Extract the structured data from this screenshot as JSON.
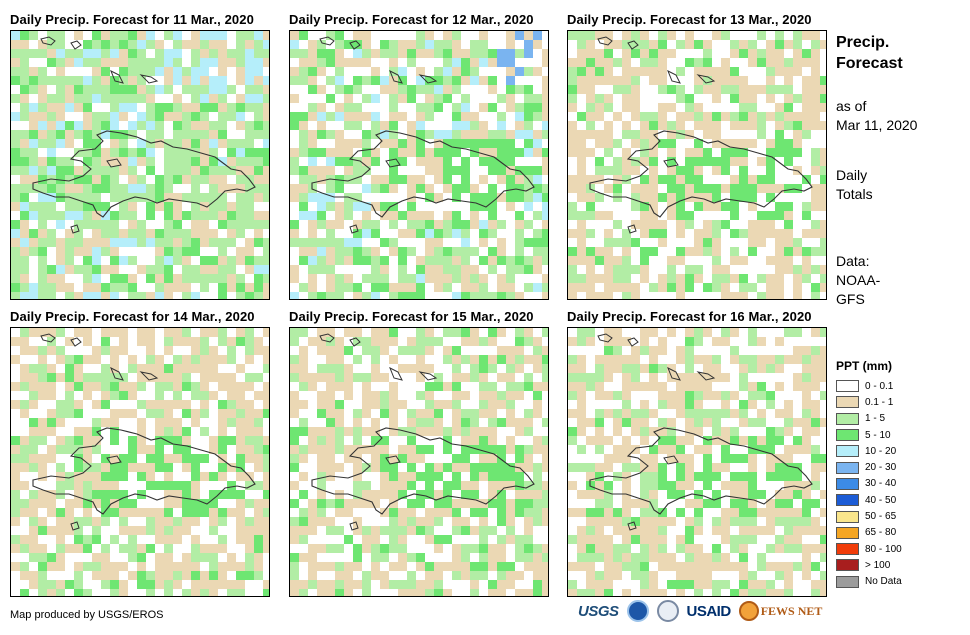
{
  "panels": [
    {
      "title": "Daily Precip. Forecast for 11 Mar., 2020",
      "seed": 11,
      "pattern": "wet"
    },
    {
      "title": "Daily Precip. Forecast for 12 Mar., 2020",
      "seed": 12,
      "pattern": "mixed"
    },
    {
      "title": "Daily Precip. Forecast for 13 Mar., 2020",
      "seed": 13,
      "pattern": "dry"
    },
    {
      "title": "Daily Precip. Forecast for 14 Mar., 2020",
      "seed": 14,
      "pattern": "dry"
    },
    {
      "title": "Daily Precip. Forecast for 15 Mar., 2020",
      "seed": 15,
      "pattern": "dry"
    },
    {
      "title": "Daily Precip. Forecast for 16 Mar., 2020",
      "seed": 16,
      "pattern": "dry"
    }
  ],
  "side_info": {
    "title_line1": "Precip.",
    "title_line2": "Forecast",
    "asof_line1": "as of",
    "asof_line2": "Mar 11, 2020",
    "totals_line1": "Daily",
    "totals_line2": "Totals",
    "data_line1": "Data:",
    "data_line2": "NOAA-",
    "data_line3": "GFS"
  },
  "legend": {
    "title": "PPT (mm)",
    "items": [
      {
        "label": "0 - 0.1",
        "color": "#ffffff"
      },
      {
        "label": "0.1 - 1",
        "color": "#ebd8b4"
      },
      {
        "label": "1 - 5",
        "color": "#b2eda5"
      },
      {
        "label": "5 - 10",
        "color": "#6ee672"
      },
      {
        "label": "10 - 20",
        "color": "#b5eefa"
      },
      {
        "label": "20 - 30",
        "color": "#7ab4f0"
      },
      {
        "label": "30 - 40",
        "color": "#3c8be6"
      },
      {
        "label": "40 - 50",
        "color": "#1c5cd6"
      },
      {
        "label": "50 - 65",
        "color": "#fae68c"
      },
      {
        "label": "65 - 80",
        "color": "#f5a623"
      },
      {
        "label": "80 - 100",
        "color": "#f03c0a"
      },
      {
        "label": "> 100",
        "color": "#a81e1e"
      },
      {
        "label": "No Data",
        "color": "#9c9c9c"
      }
    ]
  },
  "footer": {
    "credit": "Map produced by USGS/EROS",
    "logos": [
      "USGS",
      "NOAA",
      "DHS",
      "USAID",
      "FEWS NET"
    ]
  }
}
